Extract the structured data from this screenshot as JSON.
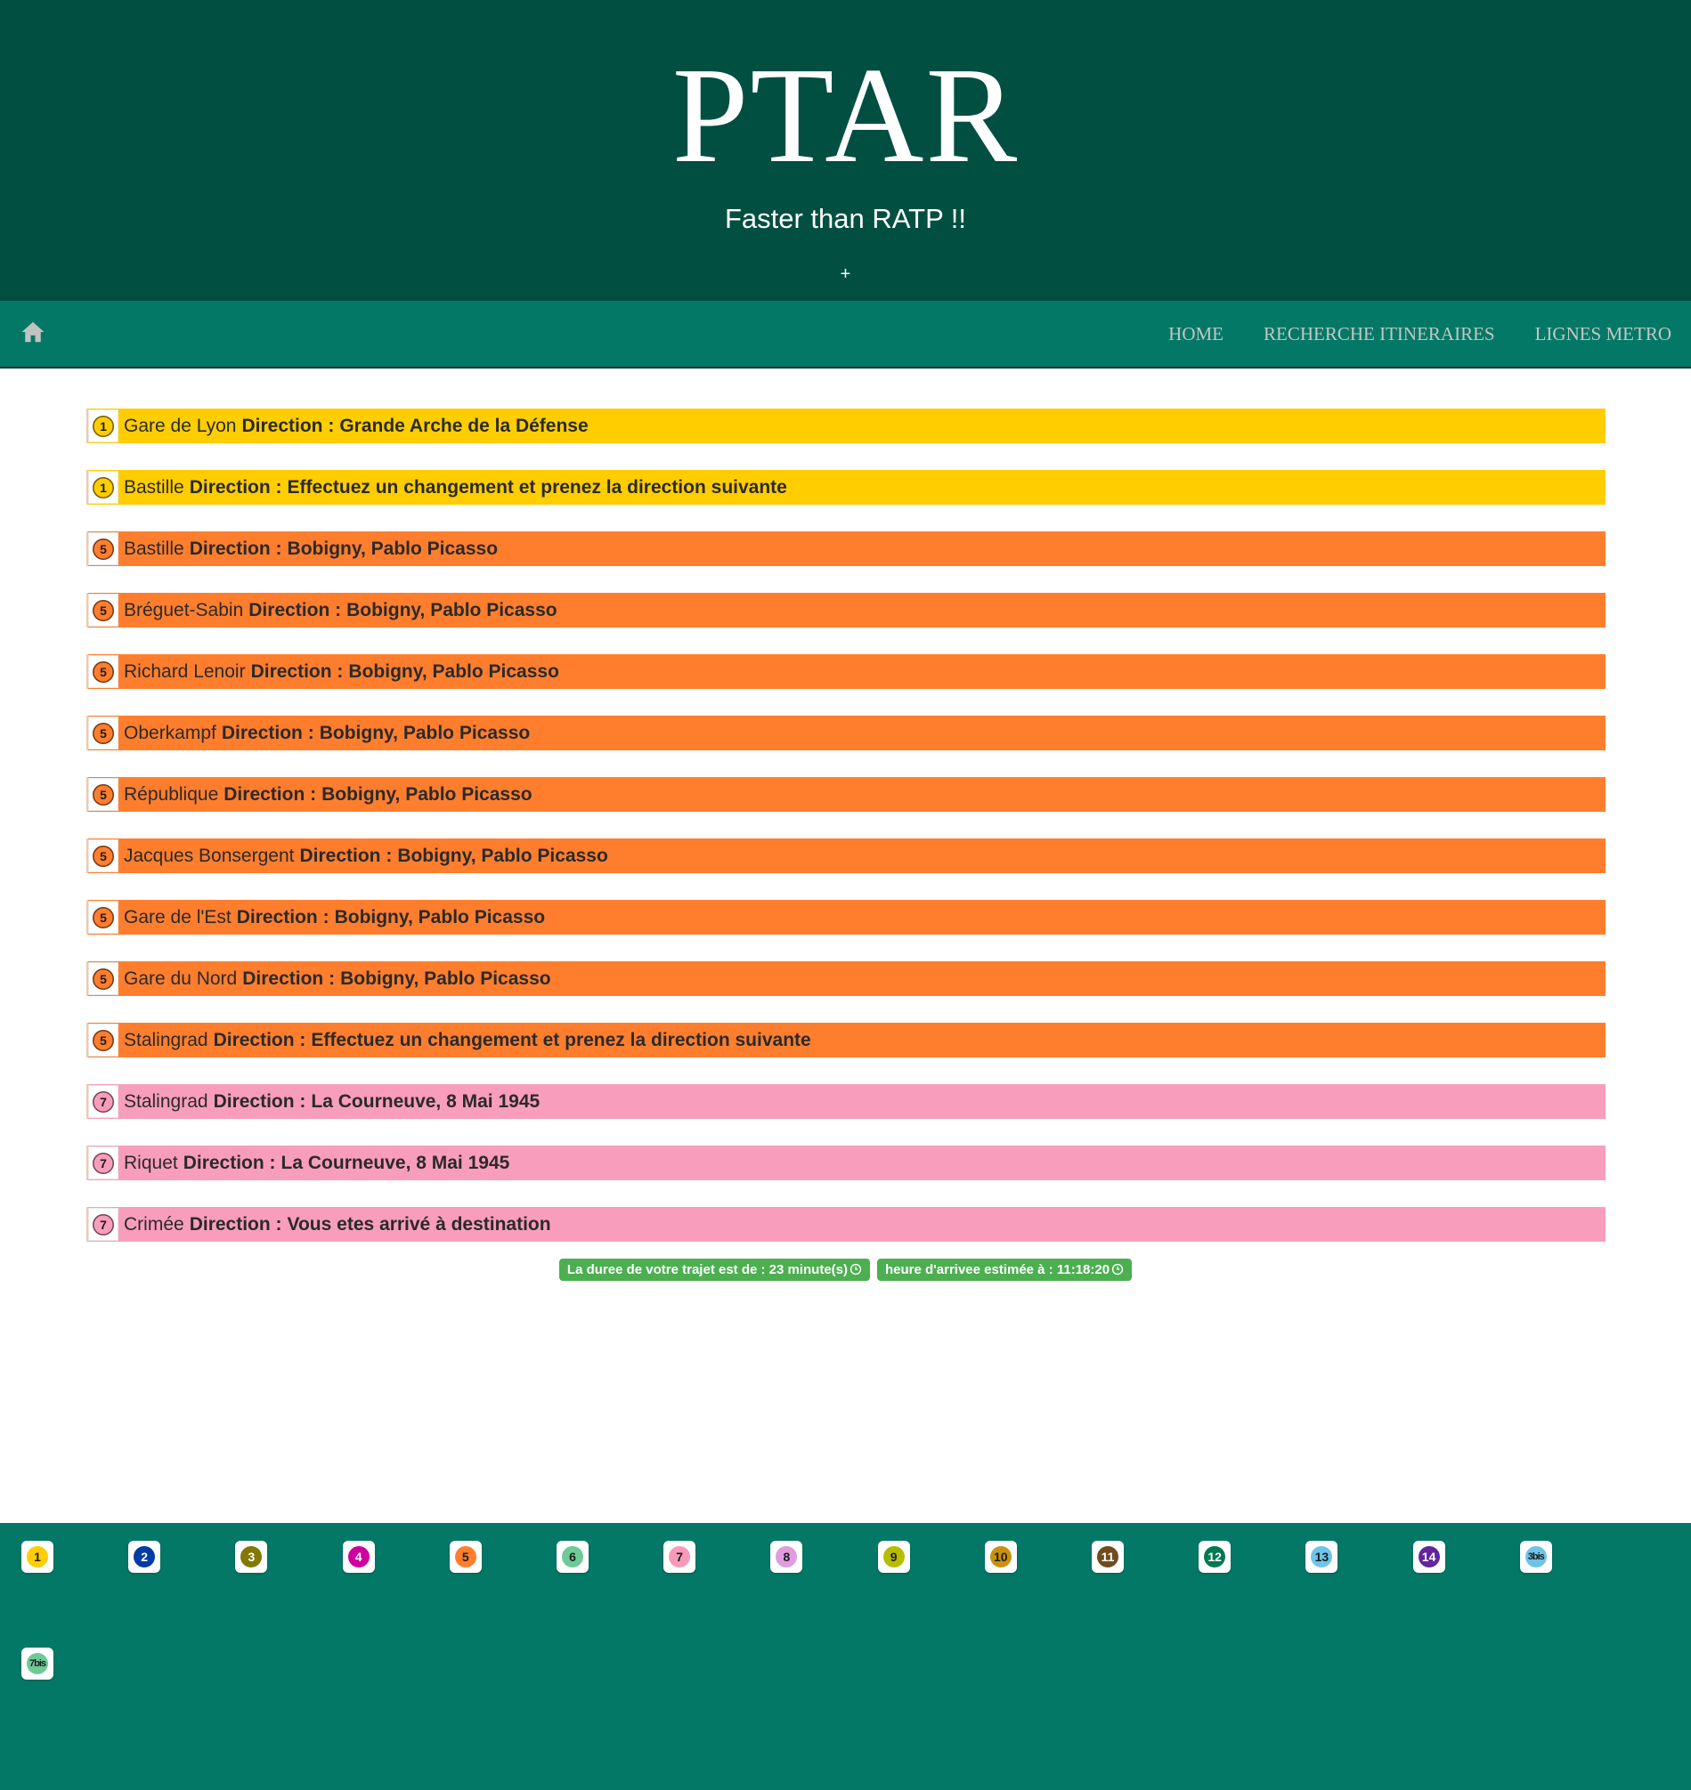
{
  "header": {
    "title": "PTAR",
    "subtitle": "Faster than RATP !!",
    "plus": "+"
  },
  "nav": {
    "home_icon": "home-icon",
    "links": [
      "HOME",
      "RECHERCHE ITINERAIRES",
      "LIGNES METRO"
    ]
  },
  "itinerary": {
    "direction_prefix": "Direction :",
    "steps": [
      {
        "line": "1",
        "station": "Gare de Lyon",
        "direction": "Grande Arche de la Défense",
        "color": "#ffcd00",
        "badge": "#ffcd00",
        "badge_text": "#1c1c1c"
      },
      {
        "line": "1",
        "station": "Bastille",
        "direction": "Effectuez un changement et prenez la direction suivante",
        "color": "#ffcd00",
        "badge": "#ffcd00",
        "badge_text": "#1c1c1c"
      },
      {
        "line": "5",
        "station": "Bastille",
        "direction": "Bobigny, Pablo Picasso",
        "color": "#ff7e2e",
        "badge": "#ff7e2e",
        "badge_text": "#1c1c1c"
      },
      {
        "line": "5",
        "station": "Bréguet-Sabin",
        "direction": "Bobigny, Pablo Picasso",
        "color": "#ff7e2e",
        "badge": "#ff7e2e",
        "badge_text": "#1c1c1c"
      },
      {
        "line": "5",
        "station": "Richard Lenoir",
        "direction": "Bobigny, Pablo Picasso",
        "color": "#ff7e2e",
        "badge": "#ff7e2e",
        "badge_text": "#1c1c1c"
      },
      {
        "line": "5",
        "station": "Oberkampf",
        "direction": "Bobigny, Pablo Picasso",
        "color": "#ff7e2e",
        "badge": "#ff7e2e",
        "badge_text": "#1c1c1c"
      },
      {
        "line": "5",
        "station": "République",
        "direction": "Bobigny, Pablo Picasso",
        "color": "#ff7e2e",
        "badge": "#ff7e2e",
        "badge_text": "#1c1c1c"
      },
      {
        "line": "5",
        "station": "Jacques Bonsergent",
        "direction": "Bobigny, Pablo Picasso",
        "color": "#ff7e2e",
        "badge": "#ff7e2e",
        "badge_text": "#1c1c1c"
      },
      {
        "line": "5",
        "station": "Gare de l'Est",
        "direction": "Bobigny, Pablo Picasso",
        "color": "#ff7e2e",
        "badge": "#ff7e2e",
        "badge_text": "#1c1c1c"
      },
      {
        "line": "5",
        "station": "Gare du Nord",
        "direction": "Bobigny, Pablo Picasso",
        "color": "#ff7e2e",
        "badge": "#ff7e2e",
        "badge_text": "#1c1c1c"
      },
      {
        "line": "5",
        "station": "Stalingrad",
        "direction": "Effectuez un changement et prenez la direction suivante",
        "color": "#ff7e2e",
        "badge": "#ff7e2e",
        "badge_text": "#1c1c1c"
      },
      {
        "line": "7",
        "station": "Stalingrad",
        "direction": "La Courneuve, 8 Mai 1945",
        "color": "#f99dbd",
        "badge": "#f99dbd",
        "badge_text": "#1c1c1c"
      },
      {
        "line": "7",
        "station": "Riquet",
        "direction": "La Courneuve, 8 Mai 1945",
        "color": "#f99dbd",
        "badge": "#f99dbd",
        "badge_text": "#1c1c1c"
      },
      {
        "line": "7",
        "station": "Crimée",
        "direction": "Vous etes arrivé à destination",
        "color": "#f99dbd",
        "badge": "#f99dbd",
        "badge_text": "#1c1c1c"
      }
    ]
  },
  "summary": {
    "duration": "La duree de votre trajet est de : 23 minute(s)",
    "arrival": "heure d'arrivee estimée à : 11:18:20",
    "icon": "clock-icon",
    "color": "#4caf50"
  },
  "metro_lines": [
    {
      "label": "1",
      "color": "#ffcd00",
      "text": "#1c1c1c"
    },
    {
      "label": "2",
      "color": "#003ca6",
      "text": "#ffffff"
    },
    {
      "label": "3",
      "color": "#837902",
      "text": "#ffffff"
    },
    {
      "label": "4",
      "color": "#cf009e",
      "text": "#ffffff"
    },
    {
      "label": "5",
      "color": "#ff7e2e",
      "text": "#1c1c1c"
    },
    {
      "label": "6",
      "color": "#6eca97",
      "text": "#1c1c1c"
    },
    {
      "label": "7",
      "color": "#fa9aba",
      "text": "#1c1c1c"
    },
    {
      "label": "8",
      "color": "#e19bdf",
      "text": "#1c1c1c"
    },
    {
      "label": "9",
      "color": "#b6bd00",
      "text": "#1c1c1c"
    },
    {
      "label": "10",
      "color": "#c9910d",
      "text": "#1c1c1c"
    },
    {
      "label": "11",
      "color": "#704b1c",
      "text": "#ffffff"
    },
    {
      "label": "12",
      "color": "#007852",
      "text": "#ffffff"
    },
    {
      "label": "13",
      "color": "#6ec4e8",
      "text": "#1c1c1c"
    },
    {
      "label": "14",
      "color": "#62259d",
      "text": "#ffffff"
    },
    {
      "label": "3bis",
      "color": "#6ec4e8",
      "text": "#1c1c1c"
    },
    {
      "label": "7bis",
      "color": "#6eca97",
      "text": "#1c1c1c"
    }
  ]
}
